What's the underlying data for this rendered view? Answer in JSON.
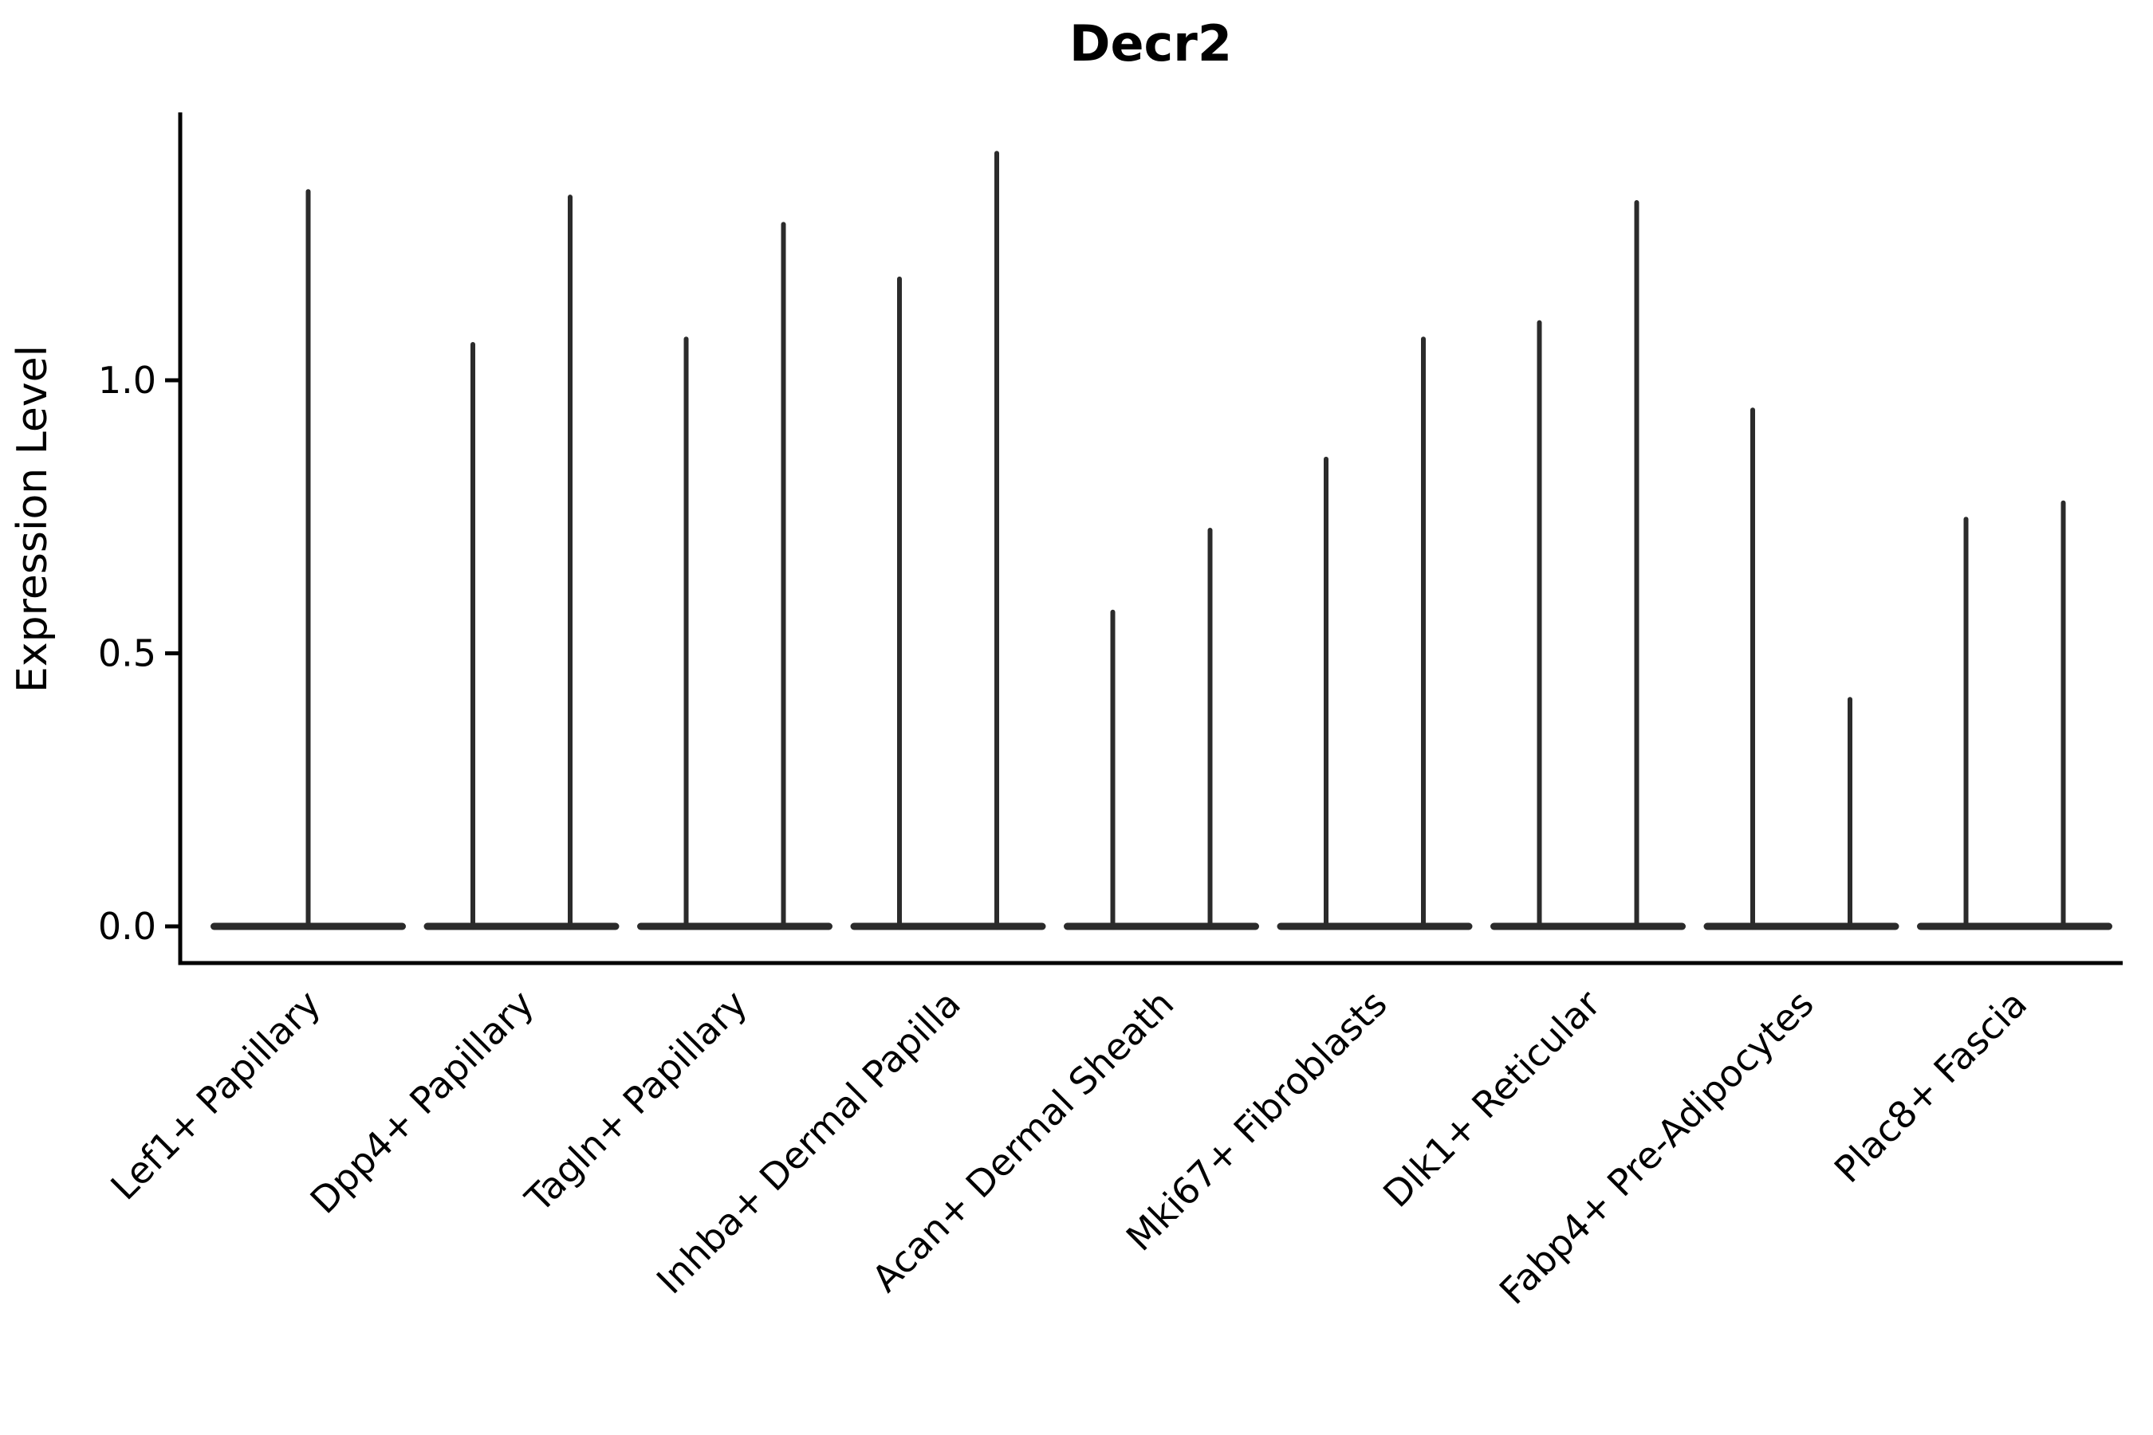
{
  "chart_data": {
    "type": "violin",
    "title": "Decr2",
    "xlabel": "",
    "ylabel": "Expression Level",
    "categories": [
      "Lef1+ Papillary",
      "Dpp4+ Papillary",
      "Tagln+ Papillary",
      "Inhba+ Dermal Papilla",
      "Acan+ Dermal Sheath",
      "Mki67+ Fibroblasts",
      "Dlk1+ Reticular",
      "Fabp4+ Pre-Adipocytes",
      "Plac8+ Fascia"
    ],
    "violin_maxima_per_category": [
      [
        1.35
      ],
      [
        1.07,
        1.34
      ],
      [
        1.08,
        1.29
      ],
      [
        1.19,
        1.42
      ],
      [
        0.58,
        0.73
      ],
      [
        0.86,
        1.08
      ],
      [
        1.11,
        1.33
      ],
      [
        0.95,
        0.42
      ],
      [
        0.75,
        0.78
      ]
    ],
    "yticks": [
      0.0,
      0.5,
      1.0
    ],
    "ytick_labels": [
      "0.0",
      "0.5",
      "1.0"
    ],
    "ylim": [
      -0.07,
      1.49
    ],
    "grid": false,
    "legend": "none",
    "line_color": "#2b2b2b",
    "spine_color": "#000000",
    "background_color": "#ffffff",
    "shape_note": "Each violin is collapsed: a wide flat base at expression level 0 with a thin vertical spike rising to the maximum expression value; the first category shows a single centered spike, all others show two side-by-side spikes sharing one merged base."
  }
}
